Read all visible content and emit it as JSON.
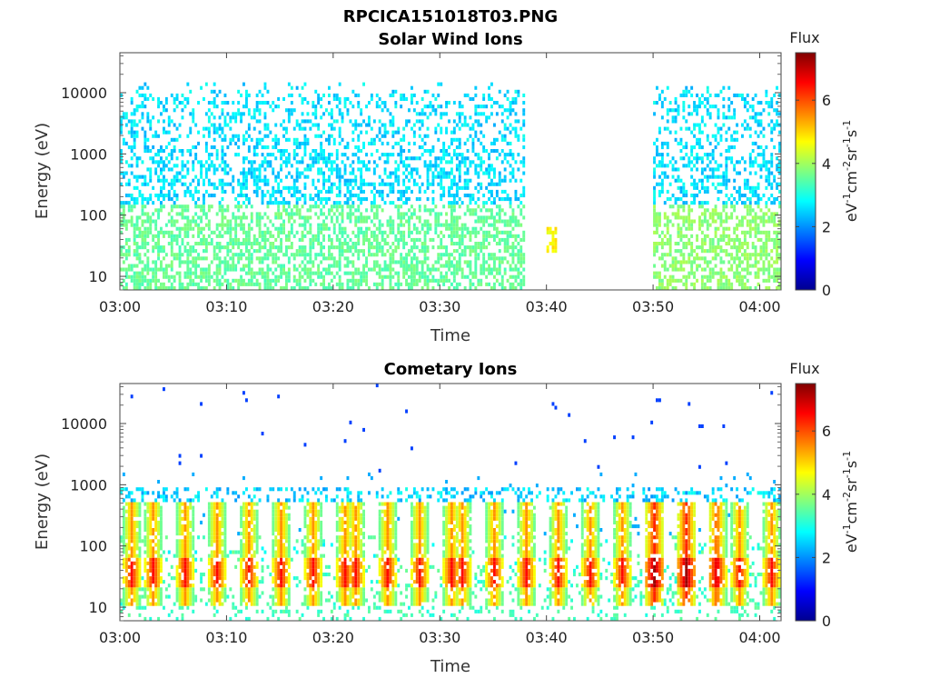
{
  "figure_title": "RPCICA151018T03.PNG",
  "chart_data": [
    {
      "type": "heatmap",
      "title": "Solar Wind Ions",
      "xlabel": "Time",
      "ylabel": "Energy (eV)",
      "x_ticks": [
        "03:00",
        "03:10",
        "03:20",
        "03:30",
        "03:40",
        "03:50",
        "04:00"
      ],
      "x_range_minutes": [
        0,
        62
      ],
      "y_scale": "log",
      "y_ticks": [
        "10",
        "100",
        "1000",
        "10000"
      ],
      "y_range": [
        6,
        45000
      ],
      "colorbar": {
        "label": "Flux",
        "units": "eV-1cm-2sr-1s-1",
        "ticks": [
          "0",
          "2",
          "4",
          "6"
        ],
        "range": [
          0,
          7.5
        ],
        "colormap": "jet"
      },
      "activity_profile": {
        "description": "dense 03:00-03:38 (high energy flux 1000-10000 eV, ~2.4-3.2); gap ~03:40-03:49; resumes 03:50-04:01",
        "regions": [
          {
            "t_start_min": 0,
            "t_end_min": 38,
            "e_low": 6,
            "e_high": 15000,
            "flux_high_energy": 2.6,
            "flux_low_energy": 3.3
          },
          {
            "t_start_min": 40,
            "t_end_min": 41,
            "e_low": 25,
            "e_high": 60,
            "flux_high_energy": 4.5,
            "flux_low_energy": 4.5
          },
          {
            "t_start_min": 50,
            "t_end_min": 62,
            "e_low": 6,
            "e_high": 12000,
            "flux_high_energy": 2.6,
            "flux_low_energy": 3.6
          }
        ]
      }
    },
    {
      "type": "heatmap",
      "title": "Cometary Ions",
      "xlabel": "Time",
      "ylabel": "Energy (eV)",
      "x_ticks": [
        "03:00",
        "03:10",
        "03:20",
        "03:30",
        "03:40",
        "03:50",
        "04:00"
      ],
      "x_range_minutes": [
        0,
        62
      ],
      "y_scale": "log",
      "y_ticks": [
        "10",
        "100",
        "1000",
        "10000"
      ],
      "y_range": [
        6,
        45000
      ],
      "colorbar": {
        "label": "Flux",
        "units": "eV-1cm-2sr-1s-1",
        "ticks": [
          "0",
          "2",
          "4",
          "6"
        ],
        "range": [
          0,
          7.5
        ],
        "colormap": "jet"
      },
      "activity_profile": {
        "description": "periodic vertical bursts roughly every 2-3 minutes, strongest flux (~5-6.5) at 30-60 eV around 03:50-03:55",
        "burst_centers_min": [
          1,
          3,
          6,
          9,
          12,
          15,
          18,
          21,
          22,
          25,
          28,
          31,
          32,
          35,
          38,
          41,
          44,
          47,
          50,
          53,
          56,
          58,
          61
        ]
      }
    }
  ]
}
